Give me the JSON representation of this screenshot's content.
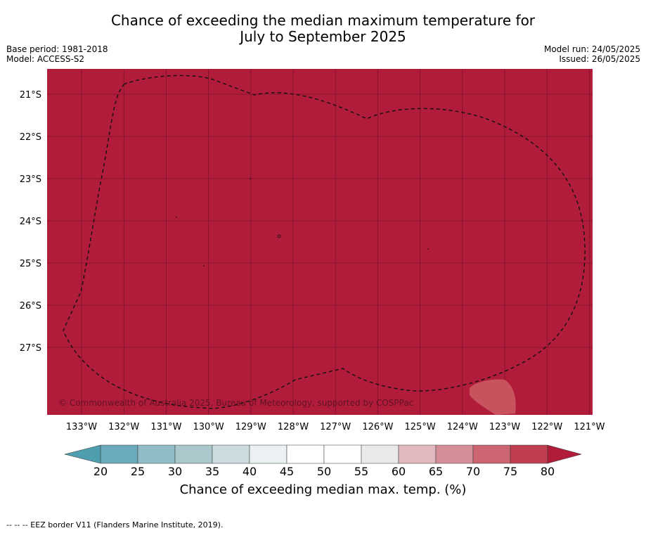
{
  "title": {
    "line1": "Chance of exceeding the median maximum temperature for",
    "line2": "July to September 2025"
  },
  "meta_left": {
    "base_period": "Base period: 1981-2018",
    "model": "Model: ACCESS-S2"
  },
  "meta_right": {
    "model_run": "Model run: 24/05/2025",
    "issued": "Issued: 26/05/2025"
  },
  "map": {
    "fill_color": "#b01c39",
    "lat_labels": [
      "21°S",
      "22°S",
      "23°S",
      "24°S",
      "25°S",
      "26°S",
      "27°S"
    ],
    "lon_labels": [
      "133°W",
      "132°W",
      "131°W",
      "130°W",
      "129°W",
      "128°W",
      "127°W",
      "126°W",
      "125°W",
      "124°W",
      "123°W",
      "122°W",
      "121°W"
    ],
    "copyright": "© Commonwealth of Australia 2025, Bureau of Meteorology, supported by COSPPac"
  },
  "colorbar": {
    "ticks": [
      "20",
      "25",
      "30",
      "35",
      "40",
      "45",
      "50",
      "55",
      "60",
      "65",
      "70",
      "75",
      "80"
    ],
    "colors": [
      "#6aabbb",
      "#8fbcc6",
      "#aac8cc",
      "#cbdbde",
      "#ebf1f2",
      "#ffffff",
      "#ffffff",
      "#e9e9e9",
      "#e2b8bf",
      "#d48e98",
      "#cb6572",
      "#c13e50"
    ],
    "under_color": "#4e9eaf",
    "over_color": "#b01c39",
    "label": "Chance of exceeding median max. temp. (%)"
  },
  "legend_note": "--  --  -- EEZ border V11 (Flanders Marine Institute, 2019)."
}
